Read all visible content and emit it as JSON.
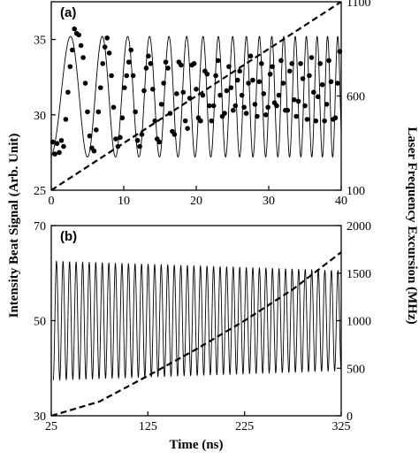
{
  "chart_data": [
    {
      "type": "line",
      "panel_label": "(a)",
      "xlim": [
        0,
        40
      ],
      "x_ticks": [
        0,
        10,
        20,
        30,
        40
      ],
      "ylim_left": [
        25,
        37.5
      ],
      "y_ticks_left": [
        25,
        30,
        35
      ],
      "ylim_right": [
        100,
        1100
      ],
      "y_ticks_right": [
        100,
        600,
        1100
      ],
      "series": [
        {
          "kind": "fit-curve",
          "axis": "left",
          "style": "solid thin line",
          "model": {
            "offset": 31.2,
            "amplitude": 4.0,
            "phase0": -1.4,
            "phase_linear": 1.0,
            "phase_quadratic": 0.045,
            "x_range": [
              0,
              40
            ]
          }
        },
        {
          "kind": "measured-points",
          "axis": "left",
          "style": "filled circles",
          "x": [
            0.2,
            0.5,
            0.8,
            1.1,
            1.4,
            1.7,
            2.0,
            2.3,
            2.6,
            2.9,
            3.2,
            3.5,
            3.8,
            4.1,
            4.4,
            4.7,
            5.0,
            5.3,
            5.6,
            5.9,
            6.2,
            6.5,
            6.8,
            7.1,
            7.4,
            7.7,
            8.0,
            8.3,
            8.6,
            8.9,
            9.2,
            9.5,
            9.8,
            10.1,
            10.4,
            10.7,
            11.0,
            11.3,
            11.6,
            11.9,
            12.2,
            12.5,
            12.8,
            13.1,
            13.4,
            13.7,
            14.0,
            14.3,
            14.6,
            14.9,
            15.2,
            15.5,
            15.8,
            16.1,
            16.4,
            16.7,
            17.0,
            17.3,
            17.6,
            17.9,
            18.2,
            18.5,
            18.8,
            19.1,
            19.4,
            19.7,
            20.0,
            20.3,
            20.6,
            20.9,
            21.2,
            21.5,
            21.8,
            22.1,
            22.4,
            22.7,
            23.0,
            23.3,
            23.6,
            23.9,
            24.2,
            24.5,
            24.8,
            25.1,
            25.4,
            25.7,
            26.0,
            26.3,
            26.6,
            26.9,
            27.2,
            27.5,
            27.8,
            28.1,
            28.4,
            28.7,
            29.0,
            29.3,
            29.6,
            29.9,
            30.2,
            30.5,
            30.8,
            31.1,
            31.4,
            31.7,
            32.0,
            32.3,
            32.6,
            32.9,
            33.2,
            33.5,
            33.8,
            34.1,
            34.4,
            34.7,
            35.0,
            35.3,
            35.6,
            35.9,
            36.2,
            36.5,
            36.8,
            37.1,
            37.4,
            37.7,
            38.0,
            38.3,
            38.6,
            38.9,
            39.2,
            39.5,
            39.8
          ],
          "y": [
            28.2,
            27.4,
            28.1,
            27.5,
            28.3,
            27.9,
            29.7,
            31.5,
            33.2,
            34.3,
            35.7,
            35.4,
            35.3,
            34.6,
            33.8,
            32.1,
            30.2,
            28.6,
            27.8,
            27.6,
            29.0,
            30.2,
            31.8,
            33.4,
            34.5,
            35.1,
            34.1,
            32.6,
            30.5,
            28.4,
            27.9,
            28.5,
            29.8,
            31.8,
            32.6,
            33.5,
            34.3,
            32.6,
            30.2,
            28.3,
            27.9,
            28.7,
            31.6,
            33.1,
            33.9,
            33.4,
            31.7,
            29.6,
            28.4,
            28.2,
            30.7,
            32.1,
            33.5,
            33.1,
            30.1,
            28.9,
            28.7,
            31.4,
            33.5,
            33.3,
            31.5,
            29.6,
            29.1,
            31.1,
            33.3,
            33.4,
            31.7,
            29.8,
            29.6,
            31.3,
            32.9,
            32.7,
            30.6,
            29.6,
            30.6,
            32.6,
            33.6,
            31.3,
            29.9,
            30.1,
            31.6,
            33.2,
            31.8,
            30.3,
            30.6,
            32.3,
            32.9,
            31.3,
            30.5,
            30.1,
            32.1,
            33.9,
            32.3,
            30.7,
            29.9,
            32.2,
            33.4,
            31.4,
            30.0,
            30.5,
            32.7,
            33.2,
            30.8,
            30.6,
            31.3,
            33.6,
            32.1,
            30.3,
            30.3,
            32.9,
            33.4,
            31.0,
            29.9,
            30.9,
            33.4,
            32.4,
            30.6,
            29.7,
            32.6,
            33.8,
            31.5,
            29.6,
            31.2,
            33.4,
            32.0,
            29.6,
            30.7,
            33.6,
            32.2,
            29.7,
            29.8,
            32.1,
            34.2
          ]
        },
        {
          "kind": "frequency-excursion",
          "axis": "right",
          "style": "dashed thick line",
          "x": [
            0,
            40
          ],
          "y": [
            100,
            1100
          ]
        }
      ]
    },
    {
      "type": "line",
      "panel_label": "(b)",
      "xlim": [
        25,
        325
      ],
      "x_ticks": [
        25,
        125,
        225,
        325
      ],
      "xlabel": "Time (ns)",
      "ylim_left": [
        30,
        70
      ],
      "y_ticks_left": [
        30,
        50,
        70
      ],
      "ylim_right": [
        0,
        2000
      ],
      "y_ticks_right": [
        0,
        500,
        1000,
        1500,
        2000
      ],
      "series": [
        {
          "kind": "beat-signal",
          "axis": "left",
          "style": "solid thin line",
          "model": {
            "offset": 50,
            "amplitude_start": 12.5,
            "amplitude_end": 10.5,
            "cycles": 44,
            "phase0": -1.5708,
            "x_range": [
              27,
              325
            ]
          }
        },
        {
          "kind": "frequency-excursion",
          "axis": "right",
          "style": "dashed thick line",
          "x": [
            25,
            75,
            125,
            175,
            225,
            275,
            325
          ],
          "y": [
            0,
            150,
            420,
            700,
            1000,
            1330,
            1720
          ]
        }
      ]
    }
  ],
  "shared_ylabel_left": "Intensity Beat Signal (Arb. Unit)",
  "shared_ylabel_right": "Laser Frequency Excursion (MHz)"
}
